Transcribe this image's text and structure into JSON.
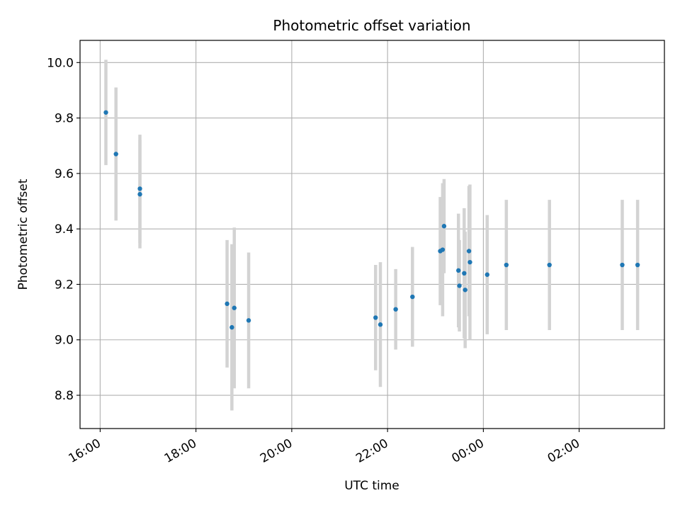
{
  "chart_data": {
    "type": "scatter",
    "title": "Photometric offset variation",
    "xlabel": "UTC time",
    "ylabel": "Photometric offset",
    "x_ticks": [
      "16:00",
      "18:00",
      "20:00",
      "22:00",
      "00:00",
      "02:00"
    ],
    "x_tick_hours": [
      16,
      18,
      20,
      22,
      24,
      26
    ],
    "y_ticks": [
      8.8,
      9.0,
      9.2,
      9.4,
      9.6,
      9.8,
      10.0
    ],
    "xlim": [
      15.58,
      27.78
    ],
    "ylim": [
      8.68,
      10.08
    ],
    "grid": true,
    "colors": {
      "point": "#1f77b4",
      "errorbar": "#d3d3d3",
      "grid": "#b0b0b0"
    },
    "points": [
      {
        "t": 16.12,
        "y": 9.82,
        "err": 0.19
      },
      {
        "t": 16.33,
        "y": 9.67,
        "err": 0.24
      },
      {
        "t": 16.83,
        "y": 9.545,
        "err": 0.195
      },
      {
        "t": 16.83,
        "y": 9.525,
        "err": 0.195
      },
      {
        "t": 18.65,
        "y": 9.13,
        "err": 0.23
      },
      {
        "t": 18.75,
        "y": 9.045,
        "err": 0.3
      },
      {
        "t": 18.8,
        "y": 9.115,
        "err": 0.29
      },
      {
        "t": 19.1,
        "y": 9.07,
        "err": 0.245
      },
      {
        "t": 21.75,
        "y": 9.08,
        "err": 0.19
      },
      {
        "t": 21.85,
        "y": 9.055,
        "err": 0.225
      },
      {
        "t": 22.17,
        "y": 9.11,
        "err": 0.145
      },
      {
        "t": 22.52,
        "y": 9.155,
        "err": 0.18
      },
      {
        "t": 23.1,
        "y": 9.32,
        "err": 0.195
      },
      {
        "t": 23.15,
        "y": 9.325,
        "err": 0.24
      },
      {
        "t": 23.18,
        "y": 9.41,
        "err": 0.17
      },
      {
        "t": 23.48,
        "y": 9.25,
        "err": 0.205
      },
      {
        "t": 23.5,
        "y": 9.195,
        "err": 0.165
      },
      {
        "t": 23.6,
        "y": 9.24,
        "err": 0.235
      },
      {
        "t": 23.62,
        "y": 9.18,
        "err": 0.21
      },
      {
        "t": 23.7,
        "y": 9.32,
        "err": 0.235
      },
      {
        "t": 23.72,
        "y": 9.28,
        "err": 0.28
      },
      {
        "t": 24.08,
        "y": 9.235,
        "err": 0.215
      },
      {
        "t": 24.48,
        "y": 9.27,
        "err": 0.235
      },
      {
        "t": 25.38,
        "y": 9.27,
        "err": 0.235
      },
      {
        "t": 26.9,
        "y": 9.27,
        "err": 0.235
      },
      {
        "t": 27.22,
        "y": 9.27,
        "err": 0.235
      }
    ]
  }
}
